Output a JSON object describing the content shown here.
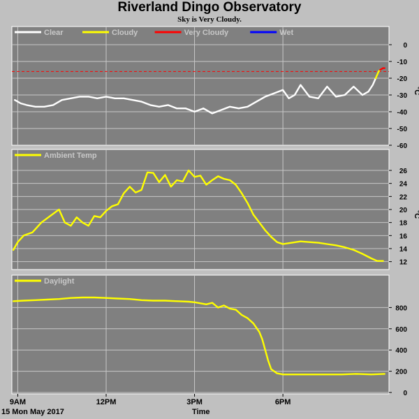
{
  "header": {
    "title": "Riverland Dingo Observatory",
    "subtitle": "Sky is Very Cloudy."
  },
  "footer": {
    "date": "15 Mon May 2017",
    "xlabel": "Time"
  },
  "colors": {
    "background": "#c0c0c0",
    "plot": "#808080",
    "clear": "#ffffff",
    "cloudy": "#ffff00",
    "very_cloudy": "#ff0000",
    "wet": "#0000ff",
    "grid": "#c8c8c8"
  },
  "chart_data": [
    {
      "type": "line",
      "xlim": [
        8.8,
        21.6
      ],
      "ylim": [
        -60,
        5
      ],
      "yticks": [
        -60,
        -50,
        -40,
        -30,
        -20,
        -10,
        0
      ],
      "ylabel": "°C",
      "xticks": [
        {
          "x": 9,
          "label": "9AM"
        },
        {
          "x": 12,
          "label": "12PM"
        },
        {
          "x": 15,
          "label": "3PM"
        },
        {
          "x": 18,
          "label": "6PM"
        }
      ],
      "legend": [
        {
          "name": "Clear",
          "color": "#ffffff"
        },
        {
          "name": "Cloudy",
          "color": "#ffff00"
        },
        {
          "name": "Very Cloudy",
          "color": "#ff0000"
        },
        {
          "name": "Wet",
          "color": "#0000ff"
        }
      ],
      "threshold": {
        "y": -16,
        "color": "#ff0000",
        "style": "dashed"
      },
      "series": [
        {
          "name": "Clear",
          "color": "#ffffff",
          "x": [
            8.9,
            9.1,
            9.3,
            9.6,
            9.9,
            10.2,
            10.5,
            10.8,
            11.1,
            11.4,
            11.7,
            12.0,
            12.3,
            12.6,
            12.9,
            13.2,
            13.5,
            13.8,
            14.1,
            14.4,
            14.7,
            15.0,
            15.3,
            15.6,
            15.9,
            16.2,
            16.5,
            16.8,
            17.1,
            17.4,
            17.7,
            18.0,
            18.2,
            18.4,
            18.6,
            18.9,
            19.2,
            19.5,
            19.8,
            20.1,
            20.4,
            20.7,
            20.9,
            21.05,
            21.15
          ],
          "y": [
            -33,
            -35,
            -36,
            -37,
            -37,
            -36,
            -33,
            -32,
            -31,
            -31,
            -32,
            -31,
            -32,
            -32,
            -33,
            -34,
            -36,
            -37,
            -36,
            -38,
            -38,
            -40,
            -38,
            -41,
            -39,
            -37,
            -38,
            -37,
            -34,
            -31,
            -29,
            -27,
            -32,
            -30,
            -24,
            -31,
            -32,
            -25,
            -31,
            -30,
            -25,
            -30,
            -28,
            -24,
            -20
          ]
        },
        {
          "name": "Cloudy",
          "color": "#ffff00",
          "x": [
            21.15,
            21.25,
            21.3
          ],
          "y": [
            -20,
            -16,
            -15
          ]
        },
        {
          "name": "Very Cloudy",
          "color": "#ff0000",
          "x": [
            21.3,
            21.4,
            21.45
          ],
          "y": [
            -15,
            -14,
            -14
          ]
        }
      ]
    },
    {
      "type": "line",
      "xlim": [
        8.8,
        21.6
      ],
      "ylim": [
        11,
        27.5
      ],
      "yticks": [
        12,
        14,
        16,
        18,
        20,
        22,
        24,
        26
      ],
      "ylabel": "°C",
      "xticks": [
        {
          "x": 9,
          "label": "9AM"
        },
        {
          "x": 12,
          "label": "12PM"
        },
        {
          "x": 15,
          "label": "3PM"
        },
        {
          "x": 18,
          "label": "6PM"
        }
      ],
      "legend": [
        {
          "name": "Ambient Temp",
          "color": "#ffff00"
        }
      ],
      "series": [
        {
          "name": "Ambient Temp",
          "color": "#ffff00",
          "x": [
            8.85,
            9.0,
            9.2,
            9.5,
            9.8,
            10.1,
            10.4,
            10.6,
            10.8,
            11.0,
            11.2,
            11.4,
            11.6,
            11.8,
            12.0,
            12.2,
            12.4,
            12.6,
            12.8,
            13.0,
            13.2,
            13.4,
            13.6,
            13.8,
            14.0,
            14.2,
            14.4,
            14.6,
            14.8,
            15.0,
            15.2,
            15.4,
            15.6,
            15.8,
            16.0,
            16.2,
            16.4,
            16.6,
            16.8,
            17.0,
            17.2,
            17.4,
            17.6,
            17.8,
            18.0,
            18.3,
            18.6,
            18.9,
            19.2,
            19.5,
            19.8,
            20.1,
            20.4,
            20.7,
            21.0,
            21.2,
            21.4
          ],
          "y": [
            13.8,
            15,
            16,
            16.5,
            18,
            19,
            20,
            18,
            17.5,
            18.8,
            18,
            17.5,
            19,
            18.8,
            19.8,
            20.5,
            20.8,
            22.5,
            23.5,
            22.6,
            23,
            25.7,
            25.6,
            24.2,
            25.3,
            23.5,
            24.5,
            24.3,
            26,
            25,
            25.2,
            23.8,
            24.5,
            25.1,
            24.7,
            24.5,
            23.8,
            22.5,
            21,
            19.2,
            18,
            16.8,
            15.8,
            15,
            14.7,
            14.9,
            15.1,
            15,
            14.9,
            14.7,
            14.5,
            14.2,
            13.8,
            13.2,
            12.5,
            12.1,
            12.1
          ]
        }
      ]
    },
    {
      "type": "line",
      "xlim": [
        8.8,
        21.6
      ],
      "ylim": [
        0,
        1000
      ],
      "yticks": [
        0,
        200,
        400,
        600,
        800
      ],
      "ylabel": "",
      "xticks": [
        {
          "x": 9,
          "label": "9AM"
        },
        {
          "x": 12,
          "label": "12PM"
        },
        {
          "x": 15,
          "label": "3PM"
        },
        {
          "x": 18,
          "label": "6PM"
        }
      ],
      "legend": [
        {
          "name": "Daylight",
          "color": "#ffff00"
        }
      ],
      "series": [
        {
          "name": "Daylight",
          "color": "#ffff00",
          "x": [
            8.85,
            9.2,
            9.6,
            10.0,
            10.4,
            10.8,
            11.2,
            11.6,
            12.0,
            12.4,
            12.8,
            13.2,
            13.6,
            14.0,
            14.4,
            14.8,
            15.0,
            15.2,
            15.4,
            15.6,
            15.8,
            16.0,
            16.2,
            16.4,
            16.6,
            16.8,
            17.0,
            17.2,
            17.3,
            17.4,
            17.5,
            17.6,
            17.8,
            18.0,
            18.5,
            19.0,
            19.5,
            20.0,
            20.5,
            21.0,
            21.45
          ],
          "y": [
            860,
            865,
            870,
            875,
            880,
            890,
            895,
            895,
            890,
            885,
            880,
            870,
            865,
            865,
            860,
            855,
            850,
            840,
            830,
            845,
            800,
            820,
            790,
            780,
            730,
            700,
            650,
            570,
            500,
            400,
            300,
            220,
            180,
            170,
            170,
            170,
            170,
            170,
            175,
            170,
            175
          ]
        }
      ]
    }
  ]
}
